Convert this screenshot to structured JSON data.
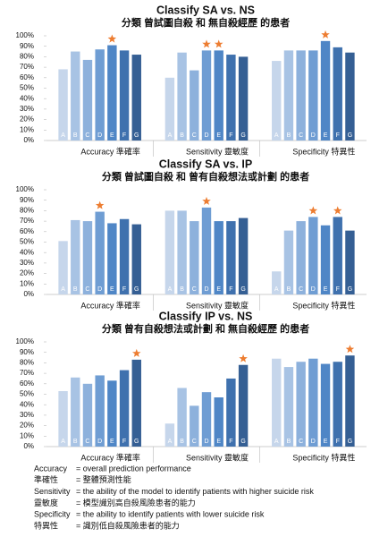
{
  "chart_data": [
    {
      "type": "bar",
      "title": "Classify SA vs. NS",
      "subtitle": "分類 曾試圖自殺 和 無自殺經歷 的患者",
      "categories": [
        "A",
        "B",
        "C",
        "D",
        "E",
        "F",
        "G"
      ],
      "colors": [
        "#c6d6eb",
        "#a8c3e4",
        "#8db1dc",
        "#6f9dd3",
        "#4f86c6",
        "#3f71ae",
        "#355f94"
      ],
      "star_color": "#ed7d31",
      "groups": [
        {
          "name": "Accuracy 準確率",
          "values": [
            68,
            85,
            77,
            87,
            91,
            86,
            82
          ],
          "starred": [
            "E"
          ]
        },
        {
          "name": "Sensitivity 靈敏度",
          "values": [
            60,
            84,
            67,
            86,
            86,
            82,
            80
          ],
          "starred": [
            "D",
            "E"
          ]
        },
        {
          "name": "Specificity 特異性",
          "values": [
            76,
            86,
            86,
            86,
            95,
            89,
            84
          ],
          "starred": [
            "E"
          ]
        }
      ],
      "ylim": [
        0,
        100
      ],
      "yticks": [
        {
          "value": 0,
          "label": "0%"
        },
        {
          "value": 10,
          "label": "10%"
        },
        {
          "value": 20,
          "label": "20%"
        },
        {
          "value": 30,
          "label": "30%"
        },
        {
          "value": 40,
          "label": "40%"
        },
        {
          "value": 50,
          "label": "50%"
        },
        {
          "value": 60,
          "label": "60%"
        },
        {
          "value": 70,
          "label": "70%"
        },
        {
          "value": 80,
          "label": "80%"
        },
        {
          "value": 90,
          "label": "90%"
        },
        {
          "value": 100,
          "label": "100%"
        }
      ]
    },
    {
      "type": "bar",
      "title": "Classify SA vs. IP",
      "subtitle": "分類 曾試圖自殺 和 曾有自殺想法或計劃 的患者",
      "categories": [
        "A",
        "B",
        "C",
        "D",
        "E",
        "F",
        "G"
      ],
      "colors": [
        "#c6d6eb",
        "#a8c3e4",
        "#8db1dc",
        "#6f9dd3",
        "#4f86c6",
        "#3f71ae",
        "#355f94"
      ],
      "star_color": "#ed7d31",
      "groups": [
        {
          "name": "Accuracy 準確率",
          "values": [
            51,
            71,
            70,
            79,
            68,
            72,
            67
          ],
          "starred": [
            "D"
          ]
        },
        {
          "name": "Sensitivity 靈敏度",
          "values": [
            80,
            80,
            70,
            83,
            70,
            70,
            73
          ],
          "starred": [
            "D"
          ]
        },
        {
          "name": "Specificity 特異性",
          "values": [
            22,
            61,
            70,
            74,
            66,
            74,
            61
          ],
          "starred": [
            "D",
            "F"
          ]
        }
      ],
      "ylim": [
        0,
        100
      ],
      "yticks": [
        {
          "value": 0,
          "label": "0%"
        },
        {
          "value": 10,
          "label": "10%"
        },
        {
          "value": 20,
          "label": "20%"
        },
        {
          "value": 30,
          "label": "30%"
        },
        {
          "value": 40,
          "label": "40%"
        },
        {
          "value": 50,
          "label": "50%"
        },
        {
          "value": 60,
          "label": "60%"
        },
        {
          "value": 70,
          "label": "70%"
        },
        {
          "value": 80,
          "label": "80%"
        },
        {
          "value": 90,
          "label": "90%"
        },
        {
          "value": 100,
          "label": "100%"
        }
      ]
    },
    {
      "type": "bar",
      "title": "Classify IP vs. NS",
      "subtitle": "分類 曾有自殺想法或計劃 和 無自殺經歷 的患者",
      "categories": [
        "A",
        "B",
        "C",
        "D",
        "E",
        "F",
        "G"
      ],
      "colors": [
        "#c6d6eb",
        "#a8c3e4",
        "#8db1dc",
        "#6f9dd3",
        "#4f86c6",
        "#3f71ae",
        "#355f94"
      ],
      "star_color": "#ed7d31",
      "groups": [
        {
          "name": "Accuracy 準確率",
          "values": [
            53,
            66,
            60,
            68,
            63,
            73,
            83
          ],
          "starred": [
            "G"
          ]
        },
        {
          "name": "Sensitivity 靈敏度",
          "values": [
            22,
            56,
            39,
            52,
            47,
            65,
            78
          ],
          "starred": [
            "G"
          ]
        },
        {
          "name": "Specificity 特異性",
          "values": [
            84,
            76,
            81,
            84,
            79,
            81,
            87
          ],
          "starred": [
            "G"
          ]
        }
      ],
      "ylim": [
        0,
        100
      ],
      "yticks": [
        {
          "value": 0,
          "label": "0%"
        },
        {
          "value": 10,
          "label": "10%"
        },
        {
          "value": 20,
          "label": "20%"
        },
        {
          "value": 30,
          "label": "30%"
        },
        {
          "value": 40,
          "label": "40%"
        },
        {
          "value": 50,
          "label": "50%"
        },
        {
          "value": 60,
          "label": "60%"
        },
        {
          "value": 70,
          "label": "70%"
        },
        {
          "value": 80,
          "label": "80%"
        },
        {
          "value": 90,
          "label": "90%"
        },
        {
          "value": 100,
          "label": "100%"
        }
      ]
    }
  ],
  "notes": [
    {
      "term": "Accuracy",
      "text": "= overall prediction performance"
    },
    {
      "term": "準確性",
      "text": "= 整體預測性能"
    },
    {
      "term": "Sensitivity",
      "text": "= the ability of the model to identify patients with higher suicide risk"
    },
    {
      "term": "靈敏度",
      "text": "= 模型識別高自殺風險患者的能力"
    },
    {
      "term": "Specificity",
      "text": "= the ability to identify patients with lower suicide risk"
    },
    {
      "term": "特異性",
      "text": "= 識別低自殺風險患者的能力"
    }
  ]
}
